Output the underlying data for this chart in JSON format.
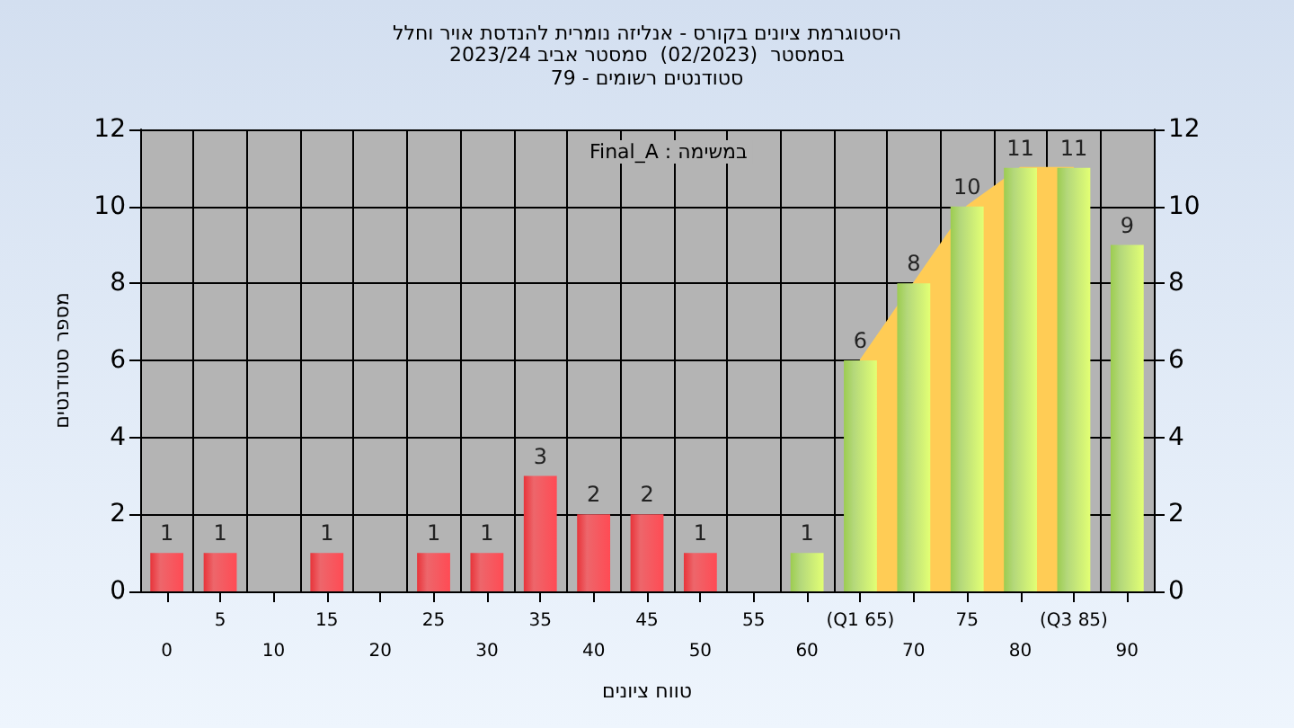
{
  "chart_data": {
    "type": "bar",
    "title": "היסטוגרמת ציונים בקורס - אנליזה נומרית להנדסת אויר וחלל",
    "subtitle": "בסמסטר  (02/2023)  סמסטר אביב 2023/24\nסטודנטים רשומים - 79",
    "xlabel": "טווח ציונים",
    "ylabel": "מספר סטודנטים",
    "annotations": [
      "Final_A : במשימה"
    ],
    "categories": [
      "0",
      "5",
      "10",
      "15",
      "20",
      "25",
      "30",
      "35",
      "40",
      "45",
      "50",
      "55",
      "60",
      "(Q1 65)",
      "70",
      "75",
      "80",
      "(Q3 85)",
      "90"
    ],
    "series": [
      {
        "type": "area",
        "color": "#ffcc55",
        "values": [
          null,
          null,
          null,
          null,
          null,
          null,
          null,
          null,
          null,
          null,
          null,
          null,
          null,
          6,
          8,
          10,
          11,
          11,
          null
        ]
      },
      {
        "colors": [
          "#e8343a",
          "#e8343a",
          "#e8343a",
          "#e8343a",
          "#e8343a",
          "#e8343a",
          "#e8343a",
          "#e8343a",
          "#e8343a",
          "#e8343a",
          "#e8343a",
          "#e8343a",
          "#9ccc50",
          "#9ccc50",
          "#9ccc50",
          "#9ccc50",
          "#9ccc50",
          "#9ccc50",
          "#9ccc50"
        ],
        "values": [
          1,
          1,
          0,
          1,
          0,
          1,
          1,
          3,
          2,
          2,
          1,
          0,
          1,
          6,
          8,
          10,
          11,
          11,
          9
        ],
        "value_labels": [
          "1",
          "1",
          null,
          "1",
          null,
          "1",
          "1",
          "3",
          "2",
          "2",
          "1",
          null,
          "1",
          "6",
          "8",
          "10",
          "11",
          "11",
          "9"
        ]
      }
    ],
    "ylim": [
      0,
      12
    ],
    "yticks": [
      0,
      2,
      4,
      6,
      8,
      10,
      12
    ],
    "y2lim": [
      0,
      12
    ],
    "y2ticks": [
      0,
      2,
      4,
      6,
      8,
      10,
      12
    ],
    "grid": true
  }
}
